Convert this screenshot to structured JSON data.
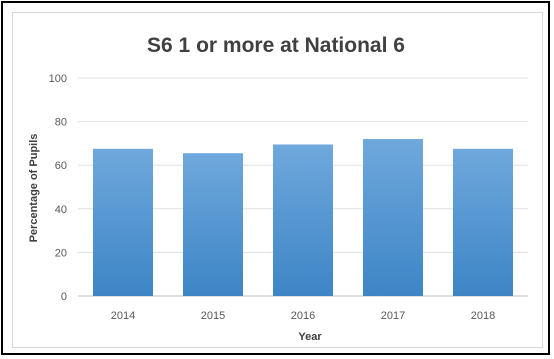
{
  "chart_data": {
    "type": "bar",
    "title": "S6 1 or more at National 6",
    "xlabel": "Year",
    "ylabel": "Percentage of Pupils",
    "categories": [
      "2014",
      "2015",
      "2016",
      "2017",
      "2018"
    ],
    "values": [
      67.5,
      65.5,
      69.5,
      72,
      67.5
    ],
    "ylim": [
      0,
      100
    ],
    "yticks": [
      "0",
      "20",
      "40",
      "60",
      "80",
      "100"
    ],
    "grid": true,
    "legend": "none",
    "colors": {
      "bar_top": "#6fa8dc",
      "bar_bottom": "#3d85c6",
      "grid": "#e0e0e0",
      "axis": "#bfbfbf"
    }
  }
}
